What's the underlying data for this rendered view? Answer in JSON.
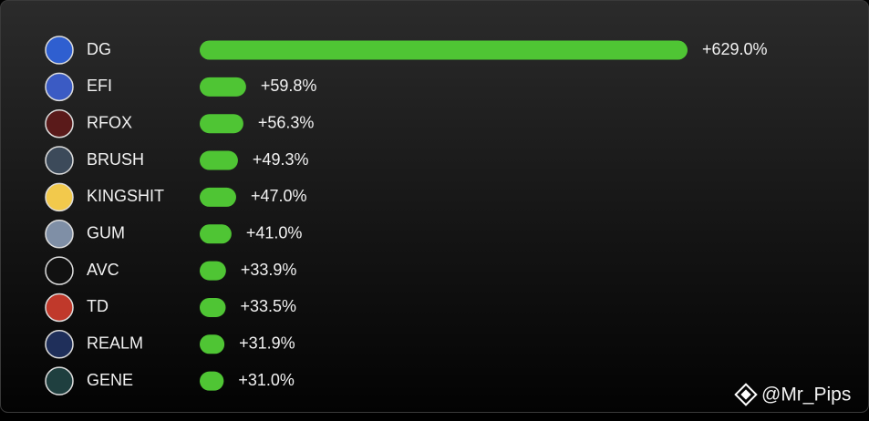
{
  "chart_data": {
    "type": "bar",
    "orientation": "horizontal",
    "categories": [
      "DG",
      "EFI",
      "RFOX",
      "BRUSH",
      "KINGSHIT",
      "GUM",
      "AVC",
      "TD",
      "REALM",
      "GENE"
    ],
    "values": [
      629.0,
      59.8,
      56.3,
      49.3,
      47.0,
      41.0,
      33.9,
      33.5,
      31.9,
      31.0
    ],
    "value_labels": [
      "+629.0%",
      "+59.8%",
      "+56.3%",
      "+49.3%",
      "+47.0%",
      "+41.0%",
      "+33.9%",
      "+33.5%",
      "+31.9%",
      "+31.0%"
    ],
    "color": "#4fc534",
    "watermark": "@Mr_Pips"
  }
}
